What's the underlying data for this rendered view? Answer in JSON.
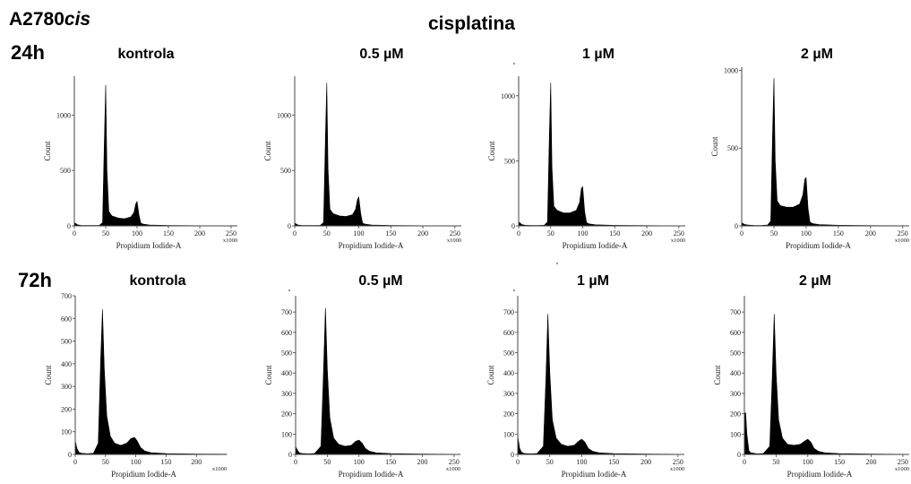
{
  "header": {
    "cell_line_prefix": "A2780",
    "cell_line_suffix": "cis",
    "drug": "cisplatina"
  },
  "rows": [
    {
      "time": "24h",
      "conditions": [
        "kontrola",
        "0.5 µM",
        "1 µM",
        "2 µM"
      ]
    },
    {
      "time": "72h",
      "conditions": [
        "kontrola",
        "0.5 µM",
        "1 µM",
        "2 µM"
      ]
    }
  ],
  "chart_data": [
    {
      "type": "area",
      "title": "kontrola",
      "row": "24h",
      "xlabel": "Propidium Iodide-A",
      "ylabel": "Count",
      "x_unit": "x1000",
      "xlim": [
        0,
        260
      ],
      "ylim": [
        0,
        1350
      ],
      "xticks": [
        0,
        50,
        100,
        150,
        200,
        250
      ],
      "yticks": [
        0,
        500,
        1000
      ],
      "x": [
        0,
        5,
        10,
        20,
        30,
        40,
        45,
        48,
        50,
        52,
        55,
        60,
        70,
        80,
        90,
        95,
        98,
        100,
        103,
        106,
        110,
        120,
        150,
        200,
        250
      ],
      "y": [
        30,
        10,
        5,
        3,
        3,
        5,
        30,
        800,
        1270,
        500,
        130,
        90,
        70,
        65,
        80,
        120,
        200,
        220,
        100,
        25,
        15,
        8,
        4,
        2,
        1
      ]
    },
    {
      "type": "area",
      "title": "0.5 µM",
      "row": "24h",
      "xlabel": "Propidium Iodide-A",
      "ylabel": "Count",
      "x_unit": "x1000",
      "xlim": [
        0,
        260
      ],
      "ylim": [
        0,
        1350
      ],
      "xticks": [
        0,
        50,
        100,
        150,
        200,
        250
      ],
      "yticks": [
        0,
        500,
        1000
      ],
      "x": [
        0,
        5,
        10,
        20,
        30,
        40,
        45,
        48,
        50,
        52,
        55,
        60,
        70,
        80,
        90,
        95,
        98,
        100,
        103,
        106,
        110,
        120,
        150,
        200,
        250
      ],
      "y": [
        25,
        8,
        5,
        3,
        3,
        5,
        30,
        800,
        1290,
        520,
        150,
        110,
        90,
        85,
        100,
        150,
        240,
        260,
        110,
        25,
        15,
        8,
        4,
        2,
        1
      ]
    },
    {
      "type": "area",
      "title": "1 µM",
      "row": "24h",
      "xlabel": "Propidium Iodide-A",
      "ylabel": "Count",
      "x_unit": "x1000",
      "xlim": [
        0,
        260
      ],
      "ylim": [
        0,
        1150
      ],
      "xticks": [
        0,
        50,
        100,
        150,
        200,
        250
      ],
      "yticks": [
        0,
        500,
        1000
      ],
      "x": [
        0,
        5,
        10,
        20,
        30,
        40,
        45,
        48,
        50,
        52,
        55,
        60,
        70,
        80,
        90,
        95,
        98,
        100,
        103,
        106,
        110,
        120,
        150,
        200,
        250
      ],
      "y": [
        30,
        10,
        5,
        3,
        3,
        5,
        30,
        700,
        1100,
        450,
        150,
        120,
        100,
        100,
        120,
        180,
        290,
        300,
        110,
        25,
        15,
        8,
        4,
        2,
        1
      ]
    },
    {
      "type": "area",
      "title": "2 µM",
      "row": "24h",
      "xlabel": "Propidium Iodide-A",
      "ylabel": "Count",
      "x_unit": "x1000",
      "xlim": [
        0,
        260
      ],
      "ylim": [
        0,
        1020
      ],
      "xticks": [
        0,
        50,
        100,
        150,
        200,
        250
      ],
      "yticks": [
        0,
        500,
        1000
      ],
      "x": [
        0,
        5,
        10,
        20,
        30,
        40,
        45,
        48,
        50,
        52,
        55,
        60,
        70,
        80,
        90,
        95,
        98,
        100,
        103,
        106,
        110,
        120,
        150,
        200,
        250
      ],
      "y": [
        20,
        8,
        5,
        3,
        3,
        5,
        30,
        600,
        950,
        420,
        160,
        130,
        120,
        120,
        140,
        200,
        300,
        310,
        110,
        25,
        15,
        8,
        4,
        2,
        1
      ]
    },
    {
      "type": "area",
      "title": "kontrola",
      "row": "72h",
      "xlabel": "Propidium Iodide-A",
      "ylabel": "Count",
      "x_unit": "x1000",
      "xlim": [
        0,
        250
      ],
      "ylim": [
        0,
        700
      ],
      "xticks": [
        0,
        50,
        100,
        150,
        200
      ],
      "yticks": [
        0,
        100,
        200,
        300,
        400,
        500,
        600,
        700
      ],
      "x": [
        0,
        3,
        6,
        10,
        20,
        30,
        38,
        42,
        45,
        48,
        52,
        58,
        65,
        75,
        85,
        92,
        98,
        102,
        108,
        115,
        125,
        150,
        200,
        250
      ],
      "y": [
        60,
        25,
        10,
        5,
        3,
        5,
        50,
        420,
        640,
        380,
        170,
        80,
        50,
        40,
        50,
        70,
        75,
        60,
        30,
        15,
        8,
        4,
        2,
        1
      ]
    },
    {
      "type": "area",
      "title": "0.5 µM",
      "row": "72h",
      "xlabel": "Propidium Iodide-A",
      "ylabel": "Count",
      "x_unit": "x1000",
      "xlim": [
        0,
        260
      ],
      "ylim": [
        0,
        780
      ],
      "xticks": [
        0,
        50,
        100,
        150,
        200,
        250
      ],
      "yticks": [
        0,
        100,
        200,
        300,
        400,
        500,
        600,
        700
      ],
      "x": [
        0,
        3,
        6,
        10,
        20,
        30,
        40,
        44,
        47,
        50,
        54,
        60,
        68,
        78,
        88,
        95,
        100,
        105,
        110,
        117,
        127,
        150,
        200,
        250
      ],
      "y": [
        40,
        20,
        8,
        5,
        3,
        5,
        40,
        400,
        720,
        420,
        180,
        80,
        50,
        40,
        45,
        65,
        70,
        55,
        30,
        15,
        8,
        4,
        2,
        1
      ]
    },
    {
      "type": "area",
      "title": "1 µM",
      "row": "72h",
      "xlabel": "Propidium Iodide-A",
      "ylabel": "Count",
      "x_unit": "x1000",
      "xlim": [
        0,
        260
      ],
      "ylim": [
        0,
        780
      ],
      "xticks": [
        0,
        50,
        100,
        150,
        200,
        250
      ],
      "yticks": [
        0,
        100,
        200,
        300,
        400,
        500,
        600,
        700
      ],
      "x": [
        0,
        3,
        6,
        10,
        20,
        30,
        40,
        44,
        47,
        50,
        54,
        60,
        68,
        78,
        88,
        95,
        100,
        105,
        110,
        117,
        127,
        150,
        200,
        250
      ],
      "y": [
        90,
        30,
        10,
        5,
        3,
        5,
        40,
        380,
        690,
        400,
        170,
        80,
        50,
        40,
        45,
        65,
        75,
        60,
        30,
        15,
        8,
        4,
        2,
        1
      ]
    },
    {
      "type": "area",
      "title": "2 µM",
      "row": "72h",
      "xlabel": "Propidium Iodide-A",
      "ylabel": "Count",
      "x_unit": "x1000",
      "xlim": [
        0,
        260
      ],
      "ylim": [
        0,
        780
      ],
      "xticks": [
        0,
        50,
        100,
        150,
        200,
        250
      ],
      "yticks": [
        0,
        100,
        200,
        300,
        400,
        500,
        600,
        700
      ],
      "x": [
        0,
        2,
        4,
        7,
        10,
        20,
        30,
        40,
        44,
        47,
        50,
        54,
        60,
        68,
        78,
        88,
        95,
        100,
        105,
        110,
        117,
        127,
        150,
        200,
        250
      ],
      "y": [
        200,
        205,
        100,
        20,
        8,
        3,
        5,
        40,
        380,
        690,
        400,
        170,
        80,
        50,
        45,
        50,
        65,
        75,
        60,
        30,
        15,
        8,
        4,
        2,
        1
      ]
    }
  ]
}
